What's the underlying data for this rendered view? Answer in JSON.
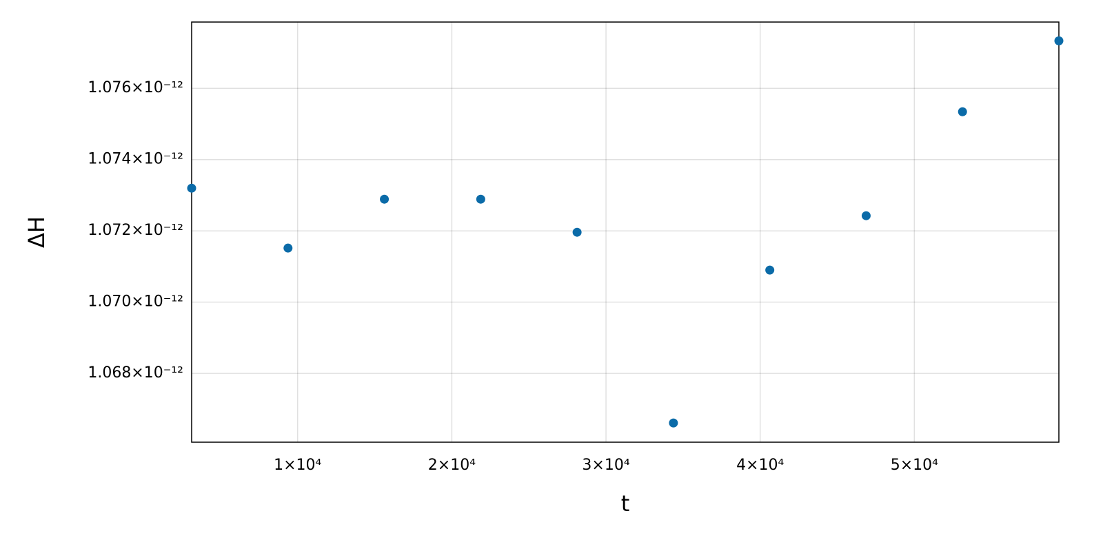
{
  "chart_data": {
    "type": "scatter",
    "xlabel": "t",
    "ylabel": "ΔH",
    "x": [
      3125,
      9375,
      15625,
      21875,
      28125,
      34375,
      40625,
      46875,
      53125,
      59375
    ],
    "series": [
      {
        "color": "#0b6ba8",
        "values": [
          1.073198e-12,
          1.071517e-12,
          1.072889e-12,
          1.072889e-12,
          1.071961e-12,
          1.066609e-12,
          1.070899e-12,
          1.072425e-12,
          1.075343e-12,
          1.077333e-12
        ]
      }
    ],
    "xlim": [
      3125,
      59375
    ],
    "ylim": [
      1.06607e-12,
      1.07786e-12
    ],
    "xticks": [
      {
        "value": 10000,
        "label": "1×10⁴"
      },
      {
        "value": 20000,
        "label": "2×10⁴"
      },
      {
        "value": 30000,
        "label": "3×10⁴"
      },
      {
        "value": 40000,
        "label": "4×10⁴"
      },
      {
        "value": 50000,
        "label": "5×10⁴"
      }
    ],
    "yticks": [
      {
        "value": 1.068e-12,
        "label": "1.068×10⁻¹²"
      },
      {
        "value": 1.07e-12,
        "label": "1.070×10⁻¹²"
      },
      {
        "value": 1.072e-12,
        "label": "1.072×10⁻¹²"
      },
      {
        "value": 1.074e-12,
        "label": "1.074×10⁻¹²"
      },
      {
        "value": 1.076e-12,
        "label": "1.076×10⁻¹²"
      }
    ],
    "grid": true
  }
}
